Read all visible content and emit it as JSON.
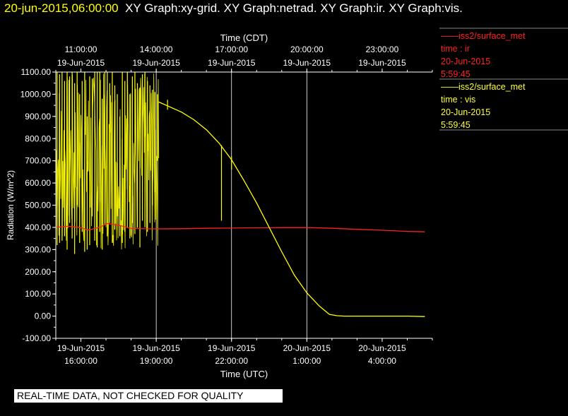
{
  "header": {
    "timestamp": "20-jun-2015,06:00:00",
    "titles": "XY Graph:xy-grid.  XY Graph:netrad.  XY Graph:ir.  XY Graph:vis."
  },
  "legend": [
    {
      "line": "iss2/surface_met",
      "var": "time : ir",
      "date": "20-Jun-2015",
      "time": "5:59:45"
    },
    {
      "line": "iss2/surface_met",
      "var": "time : vis",
      "date": "20-Jun-2015",
      "time": "5:59:45"
    }
  ],
  "disclaimer": "REAL-TIME DATA, NOT CHECKED FOR QUALITY",
  "colors": {
    "ir": "#ff2020",
    "vis": "#ffff00",
    "axis": "#ffffff",
    "grid": "#ffffff",
    "background": "#000000"
  },
  "chart_data": {
    "type": "line",
    "ylabel": "Radiation (W/m^2)",
    "xlabel_bottom": "Time (UTC)",
    "xlabel_top": "Time (CDT)",
    "ylim": [
      -100,
      1100
    ],
    "xlim_hours_utc": [
      15.0,
      30.0
    ],
    "y_ticks": [
      "1100.00",
      "1000.00",
      "900.00",
      "800.00",
      "700.00",
      "600.00",
      "500.00",
      "400.00",
      "300.00",
      "200.00",
      "100.00",
      "0.00",
      "-100.00"
    ],
    "y_tick_values": [
      1100,
      1000,
      900,
      800,
      700,
      600,
      500,
      400,
      300,
      200,
      100,
      0,
      -100
    ],
    "x_ticks_bottom": [
      {
        "x": 16,
        "date": "19-Jun-2015",
        "time": "16:00:00"
      },
      {
        "x": 19,
        "date": "19-Jun-2015",
        "time": "19:00:00"
      },
      {
        "x": 22,
        "date": "19-Jun-2015",
        "time": "22:00:00"
      },
      {
        "x": 25,
        "date": "20-Jun-2015",
        "time": "1:00:00"
      },
      {
        "x": 28,
        "date": "20-Jun-2015",
        "time": "4:00:00"
      }
    ],
    "x_ticks_top": [
      {
        "x": 16,
        "time": "11:00:00",
        "date": "19-Jun-2015"
      },
      {
        "x": 19,
        "time": "14:00:00",
        "date": "19-Jun-2015"
      },
      {
        "x": 22,
        "time": "17:00:00",
        "date": "19-Jun-2015"
      },
      {
        "x": 25,
        "time": "20:00:00",
        "date": "19-Jun-2015"
      },
      {
        "x": 28,
        "time": "23:00:00",
        "date": "19-Jun-2015"
      }
    ],
    "grid_x": [
      19,
      22,
      25
    ],
    "series": [
      {
        "name": "time : ir",
        "color": "#ff2020",
        "x": [
          15.0,
          15.5,
          16.0,
          16.3,
          16.8,
          17.0,
          17.5,
          18.0,
          19.0,
          20.0,
          21.0,
          22.0,
          23.0,
          24.0,
          25.0,
          26.0,
          27.0,
          28.0,
          29.0,
          29.7
        ],
        "y": [
          400,
          405,
          398,
          388,
          402,
          418,
          410,
          395,
          393,
          394,
          396,
          397,
          398,
          399,
          399,
          396,
          391,
          387,
          382,
          380
        ]
      },
      {
        "name": "time : vis",
        "color": "#ffff00",
        "x": [
          19.1,
          19.5,
          20.0,
          20.5,
          21.0,
          21.5,
          22.0,
          22.5,
          23.0,
          23.5,
          24.0,
          24.5,
          25.0,
          25.5,
          25.9,
          26.2,
          26.5,
          27.0,
          28.0,
          29.0,
          29.7
        ],
        "y": [
          965,
          945,
          920,
          885,
          840,
          780,
          705,
          610,
          510,
          400,
          290,
          185,
          105,
          45,
          8,
          2,
          0,
          0,
          0,
          0,
          -2
        ]
      }
    ],
    "spikes": [
      {
        "x": 15.05,
        "lo": 320,
        "hi": 1100
      },
      {
        "x": 15.15,
        "lo": 330,
        "hi": 1090
      },
      {
        "x": 15.25,
        "lo": 340,
        "hi": 1100
      },
      {
        "x": 15.35,
        "lo": 360,
        "hi": 1060
      },
      {
        "x": 15.45,
        "lo": 300,
        "hi": 1100
      },
      {
        "x": 15.55,
        "lo": 420,
        "hi": 1080
      },
      {
        "x": 15.65,
        "lo": 350,
        "hi": 1100
      },
      {
        "x": 15.75,
        "lo": 280,
        "hi": 1050
      },
      {
        "x": 15.85,
        "lo": 500,
        "hi": 1100
      },
      {
        "x": 15.95,
        "lo": 330,
        "hi": 1000
      },
      {
        "x": 16.05,
        "lo": 380,
        "hi": 1060
      },
      {
        "x": 16.15,
        "lo": 290,
        "hi": 1100
      },
      {
        "x": 16.25,
        "lo": 300,
        "hi": 900
      },
      {
        "x": 16.35,
        "lo": 320,
        "hi": 1080
      },
      {
        "x": 16.45,
        "lo": 450,
        "hi": 1070
      },
      {
        "x": 16.55,
        "lo": 340,
        "hi": 1100
      },
      {
        "x": 16.65,
        "lo": 310,
        "hi": 1100
      },
      {
        "x": 16.75,
        "lo": 380,
        "hi": 1100
      },
      {
        "x": 16.85,
        "lo": 300,
        "hi": 980
      },
      {
        "x": 16.95,
        "lo": 410,
        "hi": 1100
      },
      {
        "x": 17.05,
        "lo": 360,
        "hi": 1100
      },
      {
        "x": 17.15,
        "lo": 420,
        "hi": 1050
      },
      {
        "x": 17.25,
        "lo": 330,
        "hi": 1100
      },
      {
        "x": 17.35,
        "lo": 390,
        "hi": 1040
      },
      {
        "x": 17.45,
        "lo": 450,
        "hi": 1000
      },
      {
        "x": 17.55,
        "lo": 360,
        "hi": 900
      },
      {
        "x": 17.65,
        "lo": 330,
        "hi": 1100
      },
      {
        "x": 17.75,
        "lo": 380,
        "hi": 1060
      },
      {
        "x": 17.85,
        "lo": 400,
        "hi": 1100
      },
      {
        "x": 17.95,
        "lo": 350,
        "hi": 1000
      },
      {
        "x": 18.05,
        "lo": 420,
        "hi": 1080
      },
      {
        "x": 18.15,
        "lo": 370,
        "hi": 1100
      },
      {
        "x": 18.25,
        "lo": 400,
        "hi": 1050
      },
      {
        "x": 18.35,
        "lo": 310,
        "hi": 1030
      },
      {
        "x": 18.45,
        "lo": 430,
        "hi": 1090
      },
      {
        "x": 18.55,
        "lo": 400,
        "hi": 1100
      },
      {
        "x": 18.65,
        "lo": 380,
        "hi": 1060
      },
      {
        "x": 18.75,
        "lo": 420,
        "hi": 1040
      },
      {
        "x": 18.85,
        "lo": 500,
        "hi": 1020
      },
      {
        "x": 18.95,
        "lo": 560,
        "hi": 1010
      },
      {
        "x": 19.05,
        "lo": 700,
        "hi": 1000
      },
      {
        "x": 19.45,
        "lo": 930,
        "hi": 975
      },
      {
        "x": 21.6,
        "lo": 430,
        "hi": 770
      },
      {
        "x": 22.0,
        "lo": 660,
        "hi": 720
      }
    ]
  }
}
